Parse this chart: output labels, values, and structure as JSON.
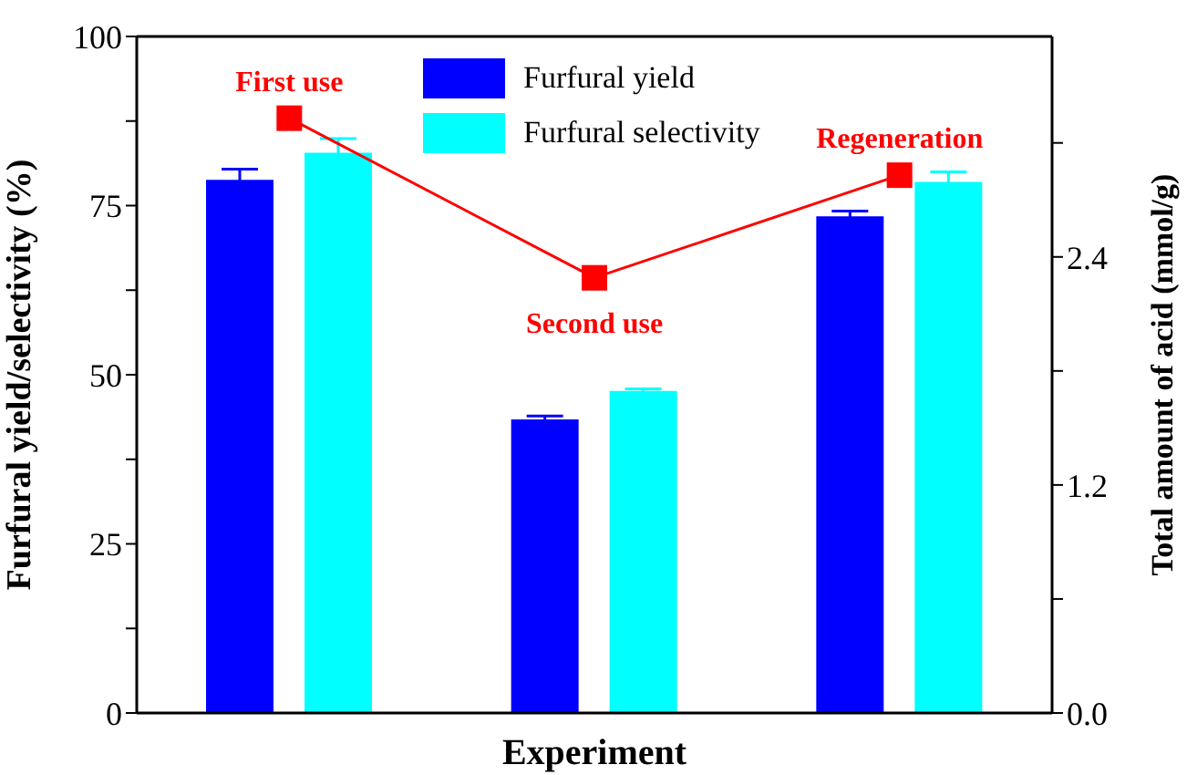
{
  "chart_data": {
    "type": "bar",
    "xlabel": "Experiment",
    "ylabel": "Furfural yield/selectivity (%)",
    "y2label": "Total amount of acid (mmol/g)",
    "categories": [
      null,
      null,
      null
    ],
    "series": [
      {
        "name": "Furfural yield",
        "color": "#0000ff",
        "values": [
          78.8,
          43.4,
          73.4
        ],
        "errors": [
          1.6,
          0.5,
          0.8
        ]
      },
      {
        "name": "Furfural selectivity",
        "color": "#00ffff",
        "values": [
          82.8,
          47.6,
          78.5
        ],
        "errors": [
          2.1,
          0.3,
          1.5
        ]
      },
      {
        "type": "line",
        "axis": "y2",
        "color": "#ff0000",
        "marker": "square",
        "values": [
          3.13,
          2.29,
          2.83
        ]
      }
    ],
    "ylim": [
      0,
      100
    ],
    "yticks": [
      0,
      {
        "value": 12.5,
        "label": null
      },
      25,
      {
        "value": 37.5,
        "label": null
      },
      50,
      {
        "value": 62.5,
        "label": null
      },
      75,
      {
        "value": 87.5,
        "label": null
      },
      100
    ],
    "y2lim": [
      0,
      3.56
    ],
    "y2ticks": [
      {
        "value": 0,
        "label": "0.0"
      },
      {
        "value": 0.6,
        "label": null
      },
      {
        "value": 1.2,
        "label": "1.2"
      },
      {
        "value": 1.8,
        "label": null
      },
      {
        "value": 2.4,
        "label": "2.4"
      },
      {
        "value": 3.0,
        "label": null
      }
    ],
    "annotations": [
      "First use",
      "Second use",
      "Regeneration"
    ],
    "legend": "top",
    "grid": false
  }
}
